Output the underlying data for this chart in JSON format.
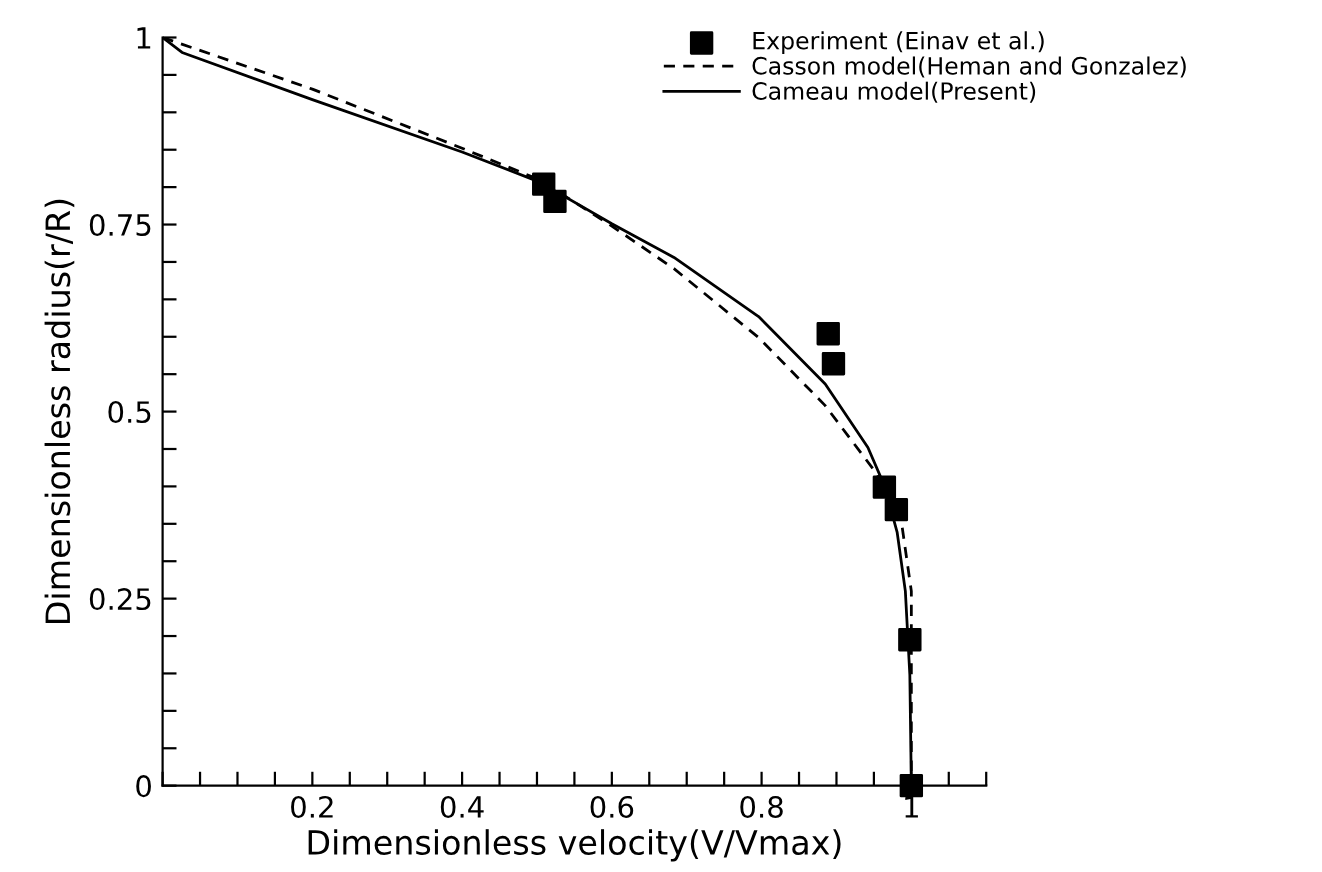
{
  "chart_data": {
    "type": "line",
    "xlabel": "Dimensionless velocity(V/Vmax)",
    "ylabel": "Dimensionless radius(r/R)",
    "xlim": [
      0,
      1.1
    ],
    "ylim": [
      0,
      1
    ],
    "xticks": [
      {
        "value": 0,
        "label": null
      },
      {
        "value": 0.05,
        "label": null
      },
      {
        "value": 0.1,
        "label": null
      },
      {
        "value": 0.15,
        "label": null
      },
      0.2,
      {
        "value": 0.25,
        "label": null
      },
      {
        "value": 0.3,
        "label": null
      },
      {
        "value": 0.35,
        "label": null
      },
      0.4,
      {
        "value": 0.45,
        "label": null
      },
      {
        "value": 0.5,
        "label": null
      },
      {
        "value": 0.55,
        "label": null
      },
      0.6,
      {
        "value": 0.65,
        "label": null
      },
      {
        "value": 0.7,
        "label": null
      },
      {
        "value": 0.75,
        "label": null
      },
      0.8,
      {
        "value": 0.85,
        "label": null
      },
      {
        "value": 0.9,
        "label": null
      },
      {
        "value": 0.95,
        "label": null
      },
      1,
      {
        "value": 1.05,
        "label": null
      },
      {
        "value": 1.1,
        "label": null
      }
    ],
    "yticks": [
      0,
      {
        "value": 0.05,
        "label": null
      },
      {
        "value": 0.1,
        "label": null
      },
      {
        "value": 0.15,
        "label": null
      },
      {
        "value": 0.2,
        "label": null
      },
      0.25,
      {
        "value": 0.3,
        "label": null
      },
      {
        "value": 0.35,
        "label": null
      },
      {
        "value": 0.4,
        "label": null
      },
      {
        "value": 0.45,
        "label": null
      },
      0.5,
      {
        "value": 0.55,
        "label": null
      },
      {
        "value": 0.6,
        "label": null
      },
      {
        "value": 0.65,
        "label": null
      },
      {
        "value": 0.7,
        "label": null
      },
      0.75,
      {
        "value": 0.8,
        "label": null
      },
      {
        "value": 0.85,
        "label": null
      },
      {
        "value": 0.9,
        "label": null
      },
      {
        "value": 0.95,
        "label": null
      },
      1
    ],
    "grid": false,
    "legend": "top right",
    "series": [
      {
        "name": "Experiment (Einav et al.)",
        "type": "scatter",
        "marker": "square",
        "color": "#000000",
        "x": [
          0.509,
          0.524,
          0.889,
          0.896,
          0.964,
          0.98,
          0.998,
          1.0
        ],
        "values": [
          0.804,
          0.781,
          0.604,
          0.564,
          0.399,
          0.369,
          0.195,
          0.0
        ]
      },
      {
        "name": "Casson model(Heman and Gonzalez)",
        "type": "line",
        "line_style": "dashed",
        "color": "#000000",
        "x": [
          0,
          0.2,
          0.4,
          0.503,
          0.6,
          0.683,
          0.796,
          0.885,
          0.953,
          0.987,
          1.0,
          1.0,
          1.0
        ],
        "values": [
          1,
          0.931,
          0.852,
          0.81,
          0.748,
          0.691,
          0.599,
          0.508,
          0.418,
          0.351,
          0.26,
          0.148,
          0
        ]
      },
      {
        "name": "Cameau model(Present)",
        "type": "line",
        "line_style": "solid",
        "color": "#000000",
        "x": [
          0,
          0.026,
          0.2,
          0.4,
          0.503,
          0.6,
          0.683,
          0.796,
          0.885,
          0.942,
          0.964,
          0.981,
          0.992,
          0.998,
          1.0
        ],
        "values": [
          1,
          0.98,
          0.917,
          0.847,
          0.807,
          0.751,
          0.706,
          0.627,
          0.537,
          0.452,
          0.401,
          0.339,
          0.26,
          0.148,
          0
        ]
      }
    ]
  }
}
